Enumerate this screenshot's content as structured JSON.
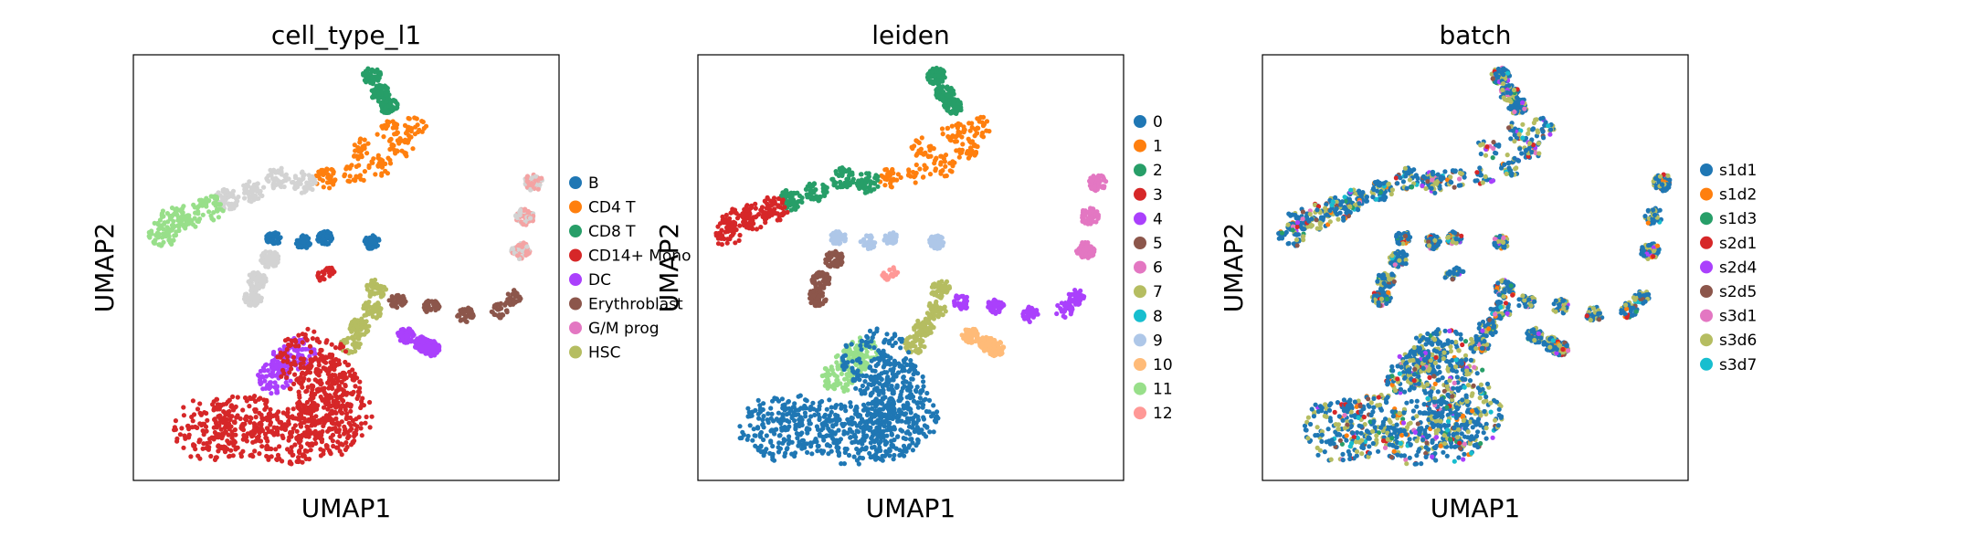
{
  "chart_data": [
    {
      "type": "scatter",
      "title": "cell_type_l1",
      "xlabel": "UMAP1",
      "ylabel": "UMAP2",
      "x_ticks": "none",
      "y_ticks": "none",
      "grid": false,
      "legend_position": "right",
      "categories": [
        "B",
        "CD4 T",
        "CD8 T",
        "CD14+ Mono",
        "DC",
        "Erythroblast",
        "G/M prog",
        "HSC"
      ],
      "colors": [
        "#1f77b4",
        "#ff7f0e",
        "#279e68",
        "#d62728",
        "#aa40fc",
        "#8c564b",
        "#e377c2",
        "#b5bd61"
      ]
    },
    {
      "type": "scatter",
      "title": "leiden",
      "xlabel": "UMAP1",
      "ylabel": "UMAP2",
      "x_ticks": "none",
      "y_ticks": "none",
      "grid": false,
      "legend_position": "right",
      "categories": [
        "0",
        "1",
        "2",
        "3",
        "4",
        "5",
        "6",
        "7",
        "8",
        "9",
        "10",
        "11",
        "12"
      ],
      "colors": [
        "#1f77b4",
        "#ff7f0e",
        "#279e68",
        "#d62728",
        "#aa40fc",
        "#8c564b",
        "#e377c2",
        "#b5bd61",
        "#17becf",
        "#aec7e8",
        "#ffbb78",
        "#98df8a",
        "#ff9896"
      ]
    },
    {
      "type": "scatter",
      "title": "batch",
      "xlabel": "UMAP1",
      "ylabel": "UMAP2",
      "x_ticks": "none",
      "y_ticks": "none",
      "grid": false,
      "legend_position": "right",
      "categories": [
        "s1d1",
        "s1d2",
        "s1d3",
        "s2d1",
        "s2d4",
        "s2d5",
        "s3d1",
        "s3d6",
        "s3d7"
      ],
      "colors": [
        "#1f77b4",
        "#ff7f0e",
        "#279e68",
        "#d62728",
        "#aa40fc",
        "#8c564b",
        "#e377c2",
        "#b5bd61",
        "#17becf"
      ]
    }
  ]
}
